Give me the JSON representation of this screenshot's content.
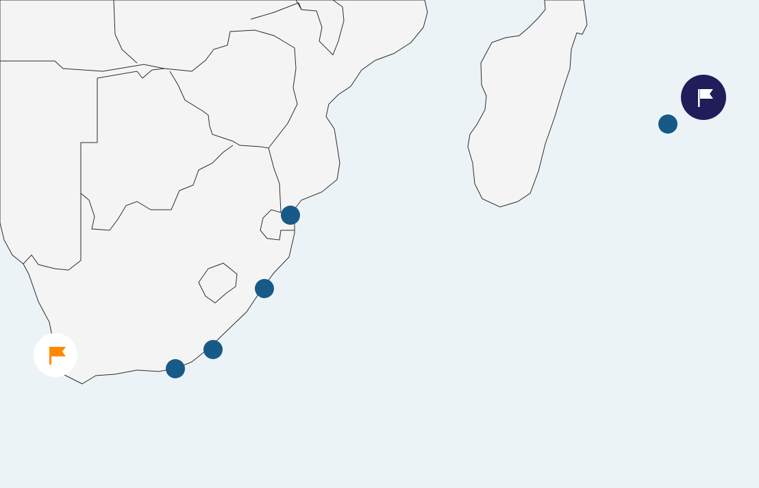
{
  "map": {
    "ocean_color": "#ecf3f7",
    "land_color": "#f4f4f4",
    "border_color": "#2a2a2a"
  },
  "markers": {
    "start": {
      "icon": "flag-icon",
      "background": "#ffffff",
      "icon_color": "#ff8a00"
    },
    "end": {
      "icon": "flag-icon",
      "background": "#211c5a",
      "icon_color": "#ffffff"
    },
    "stop_color": "#175a88",
    "stops": [
      {
        "name": "stop-1"
      },
      {
        "name": "stop-2"
      },
      {
        "name": "stop-3"
      },
      {
        "name": "stop-4"
      },
      {
        "name": "stop-5"
      }
    ]
  }
}
